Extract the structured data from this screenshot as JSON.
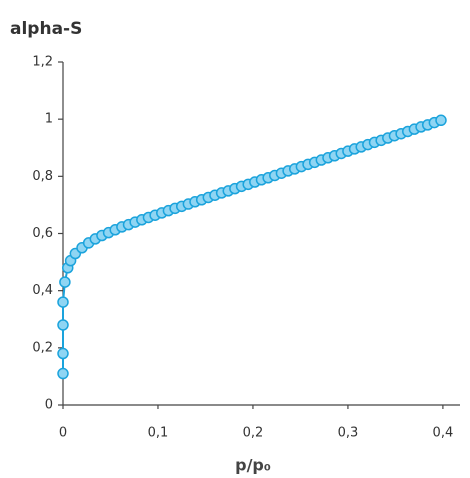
{
  "chart_data": {
    "type": "scatter",
    "ylabel": "alpha-S",
    "xlabel": "p/p₀",
    "color": "#1ba3dc",
    "marker_fill": "#8fd5f3",
    "x": [
      0,
      0,
      0,
      0,
      0.002,
      0.005,
      0.008,
      0.013,
      0.02,
      0.027,
      0.034,
      0.041,
      0.048,
      0.055,
      0.062,
      0.069,
      0.076,
      0.083,
      0.09,
      0.097,
      0.104,
      0.111,
      0.118,
      0.125,
      0.132,
      0.139,
      0.146,
      0.153,
      0.16,
      0.167,
      0.174,
      0.181,
      0.188,
      0.195,
      0.202,
      0.209,
      0.216,
      0.223,
      0.23,
      0.237,
      0.244,
      0.251,
      0.258,
      0.265,
      0.272,
      0.279,
      0.286,
      0.293,
      0.3,
      0.307,
      0.314,
      0.321,
      0.328,
      0.335,
      0.342,
      0.349,
      0.356,
      0.363,
      0.37,
      0.377,
      0.384,
      0.391,
      0.398
    ],
    "values": [
      0.11,
      0.18,
      0.28,
      0.36,
      0.43,
      0.48,
      0.505,
      0.53,
      0.55,
      0.567,
      0.581,
      0.593,
      0.603,
      0.613,
      0.623,
      0.631,
      0.64,
      0.648,
      0.656,
      0.664,
      0.672,
      0.68,
      0.688,
      0.695,
      0.703,
      0.711,
      0.718,
      0.726,
      0.734,
      0.742,
      0.749,
      0.757,
      0.765,
      0.772,
      0.78,
      0.788,
      0.795,
      0.803,
      0.811,
      0.819,
      0.826,
      0.834,
      0.842,
      0.849,
      0.857,
      0.865,
      0.872,
      0.88,
      0.888,
      0.896,
      0.903,
      0.911,
      0.919,
      0.926,
      0.934,
      0.942,
      0.949,
      0.957,
      0.965,
      0.973,
      0.98,
      0.988,
      0.996
    ],
    "xlim": [
      0,
      0.418
    ],
    "ylim": [
      0,
      1.2
    ],
    "xticks": [
      0,
      {
        "value": 0.1,
        "label": "0,1"
      },
      {
        "value": 0.2,
        "label": "0,2"
      },
      {
        "value": 0.3,
        "label": "0,3"
      },
      {
        "value": 0.4,
        "label": "0,4"
      }
    ],
    "yticks": [
      0,
      {
        "value": 0.2,
        "label": "0,2"
      },
      {
        "value": 0.4,
        "label": "0,4"
      },
      {
        "value": 0.6,
        "label": "0,6"
      },
      {
        "value": 0.8,
        "label": "0,8"
      },
      1,
      {
        "value": 1.2,
        "label": "1,2"
      }
    ]
  }
}
